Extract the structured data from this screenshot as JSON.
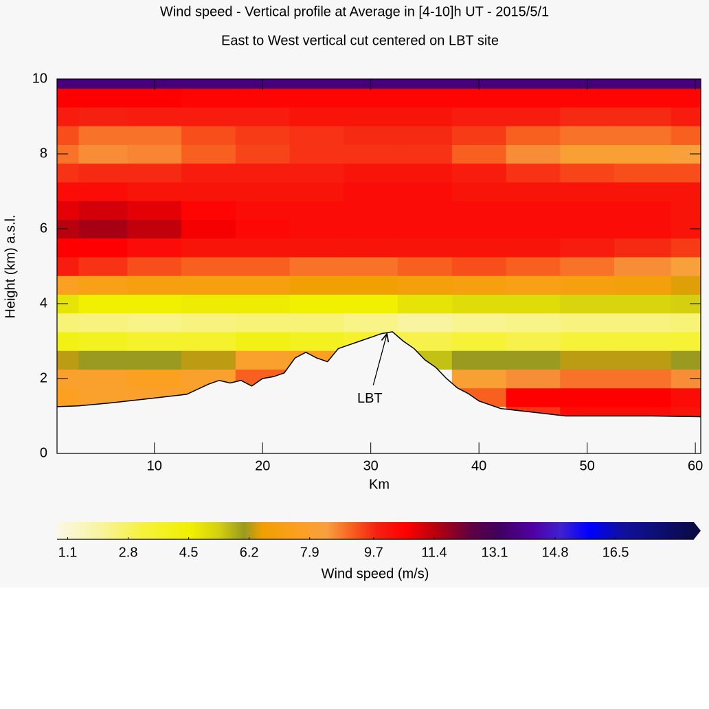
{
  "chart_data": {
    "type": "contour",
    "title": "Wind speed - Vertical profile at Average in [4-10]h UT - 2015/5/1",
    "subtitle": "East to West vertical cut centered on LBT site",
    "xlabel": "Km",
    "ylabel": "Height (km) a.s.l.",
    "xlim": [
      1,
      60.5
    ],
    "ylim": [
      0,
      10
    ],
    "xticks": [
      10,
      20,
      30,
      40,
      50,
      60
    ],
    "yticks": [
      0,
      2,
      4,
      6,
      8,
      10
    ],
    "field": {
      "x": [
        1,
        5,
        10,
        15,
        20,
        25,
        30,
        35,
        40,
        45,
        50,
        55,
        60.5
      ],
      "y": [
        1.0,
        1.5,
        2.0,
        2.5,
        3.0,
        3.5,
        4.0,
        4.5,
        5.0,
        5.5,
        6.0,
        6.5,
        7.0,
        7.5,
        8.0,
        8.5,
        9.0,
        9.5,
        10.0
      ],
      "z": [
        [
          7.5,
          null,
          null,
          null,
          null,
          null,
          null,
          null,
          null,
          9.5,
          10.2,
          10.2,
          10.0
        ],
        [
          7.5,
          7.8,
          7.8,
          7.5,
          null,
          null,
          null,
          null,
          9.0,
          10.5,
          10.5,
          10.5,
          10.2
        ],
        [
          7.8,
          7.8,
          7.5,
          7.8,
          9.0,
          null,
          null,
          null,
          8.0,
          8.5,
          8.8,
          8.8,
          8.5
        ],
        [
          6.2,
          6.0,
          6.0,
          6.2,
          7.8,
          7.5,
          null,
          5.5,
          6.0,
          6.0,
          6.2,
          6.2,
          6.0
        ],
        [
          4.0,
          3.8,
          3.5,
          3.5,
          4.0,
          3.8,
          3.5,
          3.0,
          3.2,
          3.0,
          3.2,
          3.2,
          3.3
        ],
        [
          2.5,
          2.4,
          2.3,
          2.4,
          2.5,
          2.5,
          2.3,
          2.0,
          2.2,
          2.3,
          2.4,
          2.4,
          2.5
        ],
        [
          4.8,
          4.5,
          4.5,
          4.6,
          4.6,
          4.5,
          4.5,
          4.8,
          5.0,
          5.0,
          5.2,
          5.2,
          5.3
        ],
        [
          7.5,
          7.2,
          7.0,
          7.0,
          7.0,
          6.6,
          6.5,
          6.8,
          7.0,
          7.2,
          7.0,
          6.8,
          6.4
        ],
        [
          9.8,
          9.5,
          9.2,
          9.0,
          9.0,
          8.8,
          8.8,
          9.0,
          9.2,
          9.0,
          8.8,
          8.5,
          8.2
        ],
        [
          10.5,
          10.5,
          10.2,
          10.0,
          10.0,
          10.0,
          10.0,
          10.0,
          10.0,
          10.0,
          9.8,
          9.6,
          9.4
        ],
        [
          11.3,
          11.5,
          11.2,
          10.6,
          10.3,
          10.2,
          10.2,
          10.2,
          10.2,
          10.2,
          10.2,
          10.2,
          10.0
        ],
        [
          10.8,
          11.0,
          10.8,
          10.4,
          10.2,
          10.2,
          10.2,
          10.2,
          10.2,
          10.2,
          10.2,
          10.2,
          10.0
        ],
        [
          10.2,
          10.2,
          10.0,
          10.0,
          10.0,
          10.0,
          10.2,
          10.2,
          10.0,
          10.0,
          10.0,
          10.0,
          10.0
        ],
        [
          9.5,
          9.6,
          9.6,
          9.8,
          9.8,
          9.8,
          10.0,
          10.0,
          9.8,
          9.5,
          9.3,
          9.2,
          9.2
        ],
        [
          8.8,
          8.5,
          8.6,
          9.0,
          9.3,
          9.5,
          9.5,
          9.5,
          9.0,
          8.5,
          8.0,
          8.0,
          8.2
        ],
        [
          9.2,
          8.8,
          8.8,
          9.2,
          9.4,
          9.5,
          9.6,
          9.6,
          9.4,
          9.0,
          8.8,
          8.8,
          9.0
        ],
        [
          9.8,
          9.7,
          9.8,
          9.8,
          9.8,
          10.0,
          10.0,
          10.0,
          9.8,
          9.8,
          9.6,
          9.6,
          9.8
        ],
        [
          10.5,
          10.5,
          10.5,
          10.4,
          10.4,
          10.4,
          10.4,
          10.4,
          10.4,
          10.4,
          10.4,
          10.4,
          10.4
        ],
        [
          13.5,
          13.5,
          13.5,
          13.5,
          13.5,
          13.5,
          13.5,
          13.5,
          13.5,
          13.5,
          13.5,
          13.5,
          13.5
        ]
      ]
    },
    "terrain": {
      "x": [
        1,
        3,
        6,
        10,
        13,
        15,
        16,
        17,
        18,
        19,
        20,
        21,
        22,
        23,
        24,
        25,
        26,
        27,
        28,
        29,
        30,
        31,
        32,
        33,
        34,
        35,
        36,
        37,
        38,
        39,
        40,
        42,
        45,
        48,
        52,
        56,
        60.5
      ],
      "y": [
        1.25,
        1.27,
        1.35,
        1.48,
        1.58,
        1.85,
        1.95,
        1.88,
        1.95,
        1.8,
        2.0,
        2.05,
        2.15,
        2.55,
        2.7,
        2.55,
        2.45,
        2.8,
        2.9,
        3.0,
        3.1,
        3.2,
        3.25,
        3.0,
        2.8,
        2.5,
        2.3,
        2.0,
        1.75,
        1.6,
        1.4,
        1.2,
        1.1,
        1.0,
        1.0,
        1.0,
        0.98
      ]
    },
    "annotations": [
      {
        "text": "LBT",
        "x": 31.5,
        "y": 3.2
      }
    ],
    "colorbar": {
      "label": "Wind speed (m/s)",
      "lim": [
        0.8,
        18.7
      ],
      "ticks": [
        1.1,
        2.8,
        4.5,
        6.2,
        7.9,
        9.7,
        11.4,
        13.1,
        14.8,
        16.5
      ],
      "stops": [
        {
          "value": 0.8,
          "color": "#fbf8e6"
        },
        {
          "value": 2.0,
          "color": "#f8f4a0"
        },
        {
          "value": 3.2,
          "color": "#f6f23a"
        },
        {
          "value": 4.5,
          "color": "#f0f000"
        },
        {
          "value": 5.3,
          "color": "#d4d010"
        },
        {
          "value": 6.0,
          "color": "#9a9a20"
        },
        {
          "value": 6.5,
          "color": "#f0a000"
        },
        {
          "value": 7.5,
          "color": "#fba020"
        },
        {
          "value": 8.3,
          "color": "#f7a040"
        },
        {
          "value": 9.0,
          "color": "#f86020"
        },
        {
          "value": 9.7,
          "color": "#f62010"
        },
        {
          "value": 10.5,
          "color": "#ff0000"
        },
        {
          "value": 11.4,
          "color": "#b00010"
        },
        {
          "value": 12.3,
          "color": "#600040"
        },
        {
          "value": 13.1,
          "color": "#400060"
        },
        {
          "value": 14.0,
          "color": "#5000a0"
        },
        {
          "value": 14.8,
          "color": "#4020d0"
        },
        {
          "value": 15.6,
          "color": "#0000ff"
        },
        {
          "value": 16.5,
          "color": "#1010a0"
        },
        {
          "value": 18.7,
          "color": "#0a0a40"
        }
      ]
    }
  }
}
